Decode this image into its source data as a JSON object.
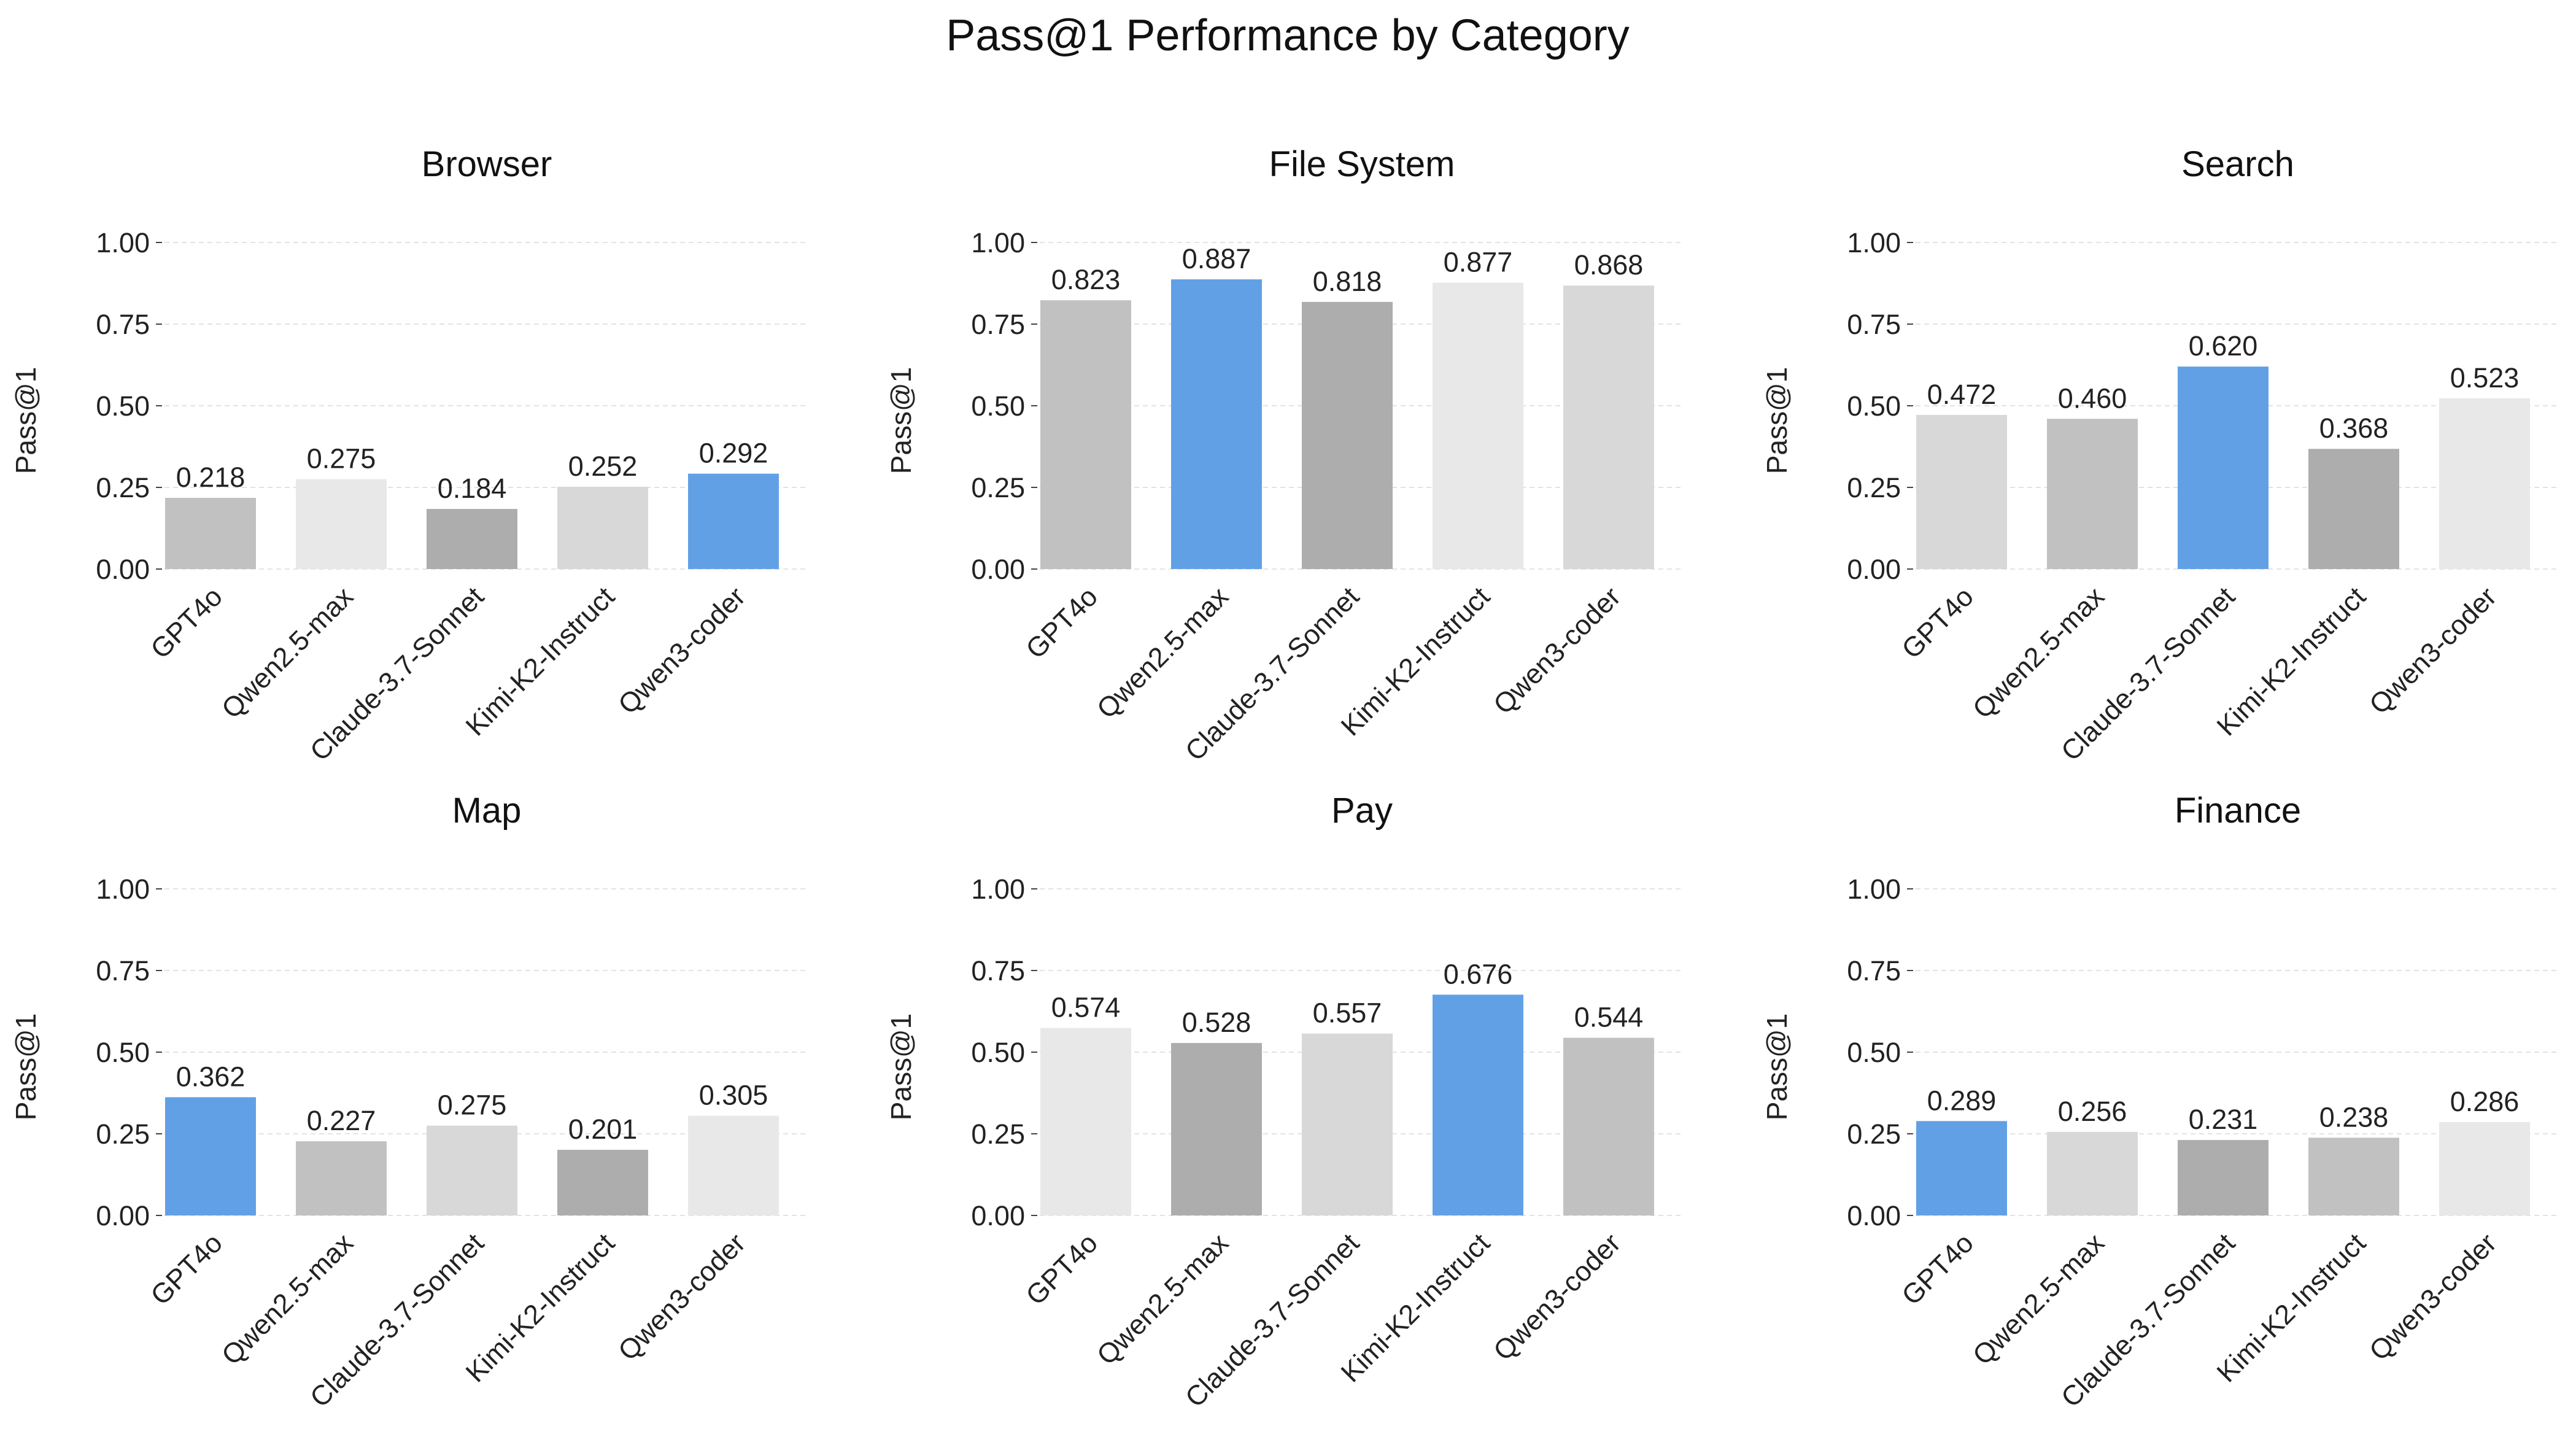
{
  "chart_data": {
    "title": "Pass@1 Performance by Category",
    "type": "bar",
    "ylabel": "Pass@1",
    "ylim": [
      0,
      1.0
    ],
    "yticks": [
      "0.00",
      "0.25",
      "0.50",
      "0.75",
      "1.00"
    ],
    "grid": true,
    "categories": [
      "GPT4o",
      "Qwen2.5-max",
      "Claude-3.7-Sonnet",
      "Kimi-K2-Instruct",
      "Qwen3-coder"
    ],
    "highlight_color": "#62a0e6",
    "gray_palette": [
      "#c1c1c1",
      "#e8e8e8",
      "#adadad",
      "#d8d8d8"
    ],
    "subplots": [
      {
        "title": "Browser",
        "values": [
          0.218,
          0.275,
          0.184,
          0.252,
          0.292
        ],
        "labels": [
          "0.218",
          "0.275",
          "0.184",
          "0.252",
          "0.292"
        ],
        "colors": [
          "#c1c1c1",
          "#e8e8e8",
          "#adadad",
          "#d8d8d8",
          "#62a0e6"
        ]
      },
      {
        "title": "File System",
        "values": [
          0.823,
          0.887,
          0.818,
          0.877,
          0.868
        ],
        "labels": [
          "0.823",
          "0.887",
          "0.818",
          "0.877",
          "0.868"
        ],
        "colors": [
          "#c1c1c1",
          "#62a0e6",
          "#adadad",
          "#e8e8e8",
          "#d8d8d8"
        ]
      },
      {
        "title": "Search",
        "values": [
          0.472,
          0.46,
          0.62,
          0.368,
          0.523
        ],
        "labels": [
          "0.472",
          "0.460",
          "0.620",
          "0.368",
          "0.523"
        ],
        "colors": [
          "#d8d8d8",
          "#c1c1c1",
          "#62a0e6",
          "#adadad",
          "#e8e8e8"
        ]
      },
      {
        "title": "Map",
        "values": [
          0.362,
          0.227,
          0.275,
          0.201,
          0.305
        ],
        "labels": [
          "0.362",
          "0.227",
          "0.275",
          "0.201",
          "0.305"
        ],
        "colors": [
          "#62a0e6",
          "#c1c1c1",
          "#d8d8d8",
          "#adadad",
          "#e8e8e8"
        ]
      },
      {
        "title": "Pay",
        "values": [
          0.574,
          0.528,
          0.557,
          0.676,
          0.544
        ],
        "labels": [
          "0.574",
          "0.528",
          "0.557",
          "0.676",
          "0.544"
        ],
        "colors": [
          "#e8e8e8",
          "#adadad",
          "#d8d8d8",
          "#62a0e6",
          "#c1c1c1"
        ]
      },
      {
        "title": "Finance",
        "values": [
          0.289,
          0.256,
          0.231,
          0.238,
          0.286
        ],
        "labels": [
          "0.289",
          "0.256",
          "0.231",
          "0.238",
          "0.286"
        ],
        "colors": [
          "#62a0e6",
          "#d8d8d8",
          "#adadad",
          "#c1c1c1",
          "#e8e8e8"
        ]
      }
    ]
  }
}
